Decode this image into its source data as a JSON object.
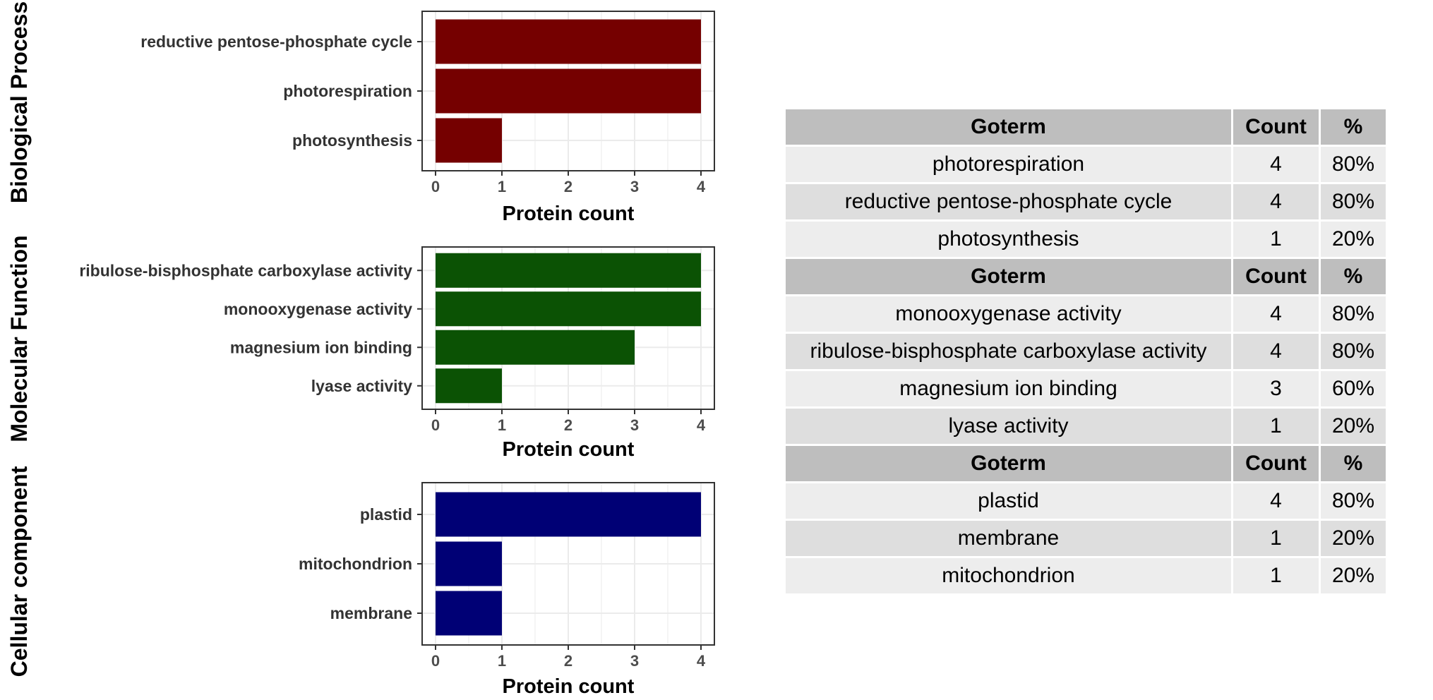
{
  "chart_data": [
    {
      "type": "bar",
      "orientation": "horizontal",
      "facet_label": "Biological Process",
      "categories": [
        "reductive pentose-phosphate cycle",
        "photorespiration",
        "photosynthesis"
      ],
      "values": [
        4,
        4,
        1
      ],
      "xlabel": "Protein count",
      "xticks": [
        "0",
        "1",
        "2",
        "3",
        "4"
      ],
      "xlim": [
        0,
        4
      ],
      "bar_color": "#750000",
      "grid": true
    },
    {
      "type": "bar",
      "orientation": "horizontal",
      "facet_label": "Molecular Function",
      "categories": [
        "ribulose-bisphosphate carboxylase activity",
        "monooxygenase activity",
        "magnesium ion binding",
        "lyase activity"
      ],
      "values": [
        4,
        4,
        3,
        1
      ],
      "xlabel": "Protein count",
      "xticks": [
        "0",
        "1",
        "2",
        "3",
        "4"
      ],
      "xlim": [
        0,
        4
      ],
      "bar_color": "#0b5204",
      "grid": true
    },
    {
      "type": "bar",
      "orientation": "horizontal",
      "facet_label": "Cellular component",
      "categories": [
        "plastid",
        "mitochondrion",
        "membrane"
      ],
      "values": [
        4,
        1,
        1
      ],
      "xlabel": "Protein count",
      "xticks": [
        "0",
        "1",
        "2",
        "3",
        "4"
      ],
      "xlim": [
        0,
        4
      ],
      "bar_color": "#000075",
      "grid": true
    },
    {
      "type": "table",
      "sections": [
        {
          "header": [
            "Goterm",
            "Count",
            "%"
          ],
          "rows": [
            [
              "photorespiration",
              "4",
              "80%"
            ],
            [
              "reductive pentose-phosphate cycle",
              "4",
              "80%"
            ],
            [
              "photosynthesis",
              "1",
              "20%"
            ]
          ]
        },
        {
          "header": [
            "Goterm",
            "Count",
            "%"
          ],
          "rows": [
            [
              "monooxygenase activity",
              "4",
              "80%"
            ],
            [
              "ribulose-bisphosphate carboxylase activity",
              "4",
              "80%"
            ],
            [
              "magnesium ion binding",
              "3",
              "60%"
            ],
            [
              "lyase activity",
              "1",
              "20%"
            ]
          ]
        },
        {
          "header": [
            "Goterm",
            "Count",
            "%"
          ],
          "rows": [
            [
              "plastid",
              "4",
              "80%"
            ],
            [
              "membrane",
              "1",
              "20%"
            ],
            [
              "mitochondrion",
              "1",
              "20%"
            ]
          ]
        }
      ]
    }
  ]
}
